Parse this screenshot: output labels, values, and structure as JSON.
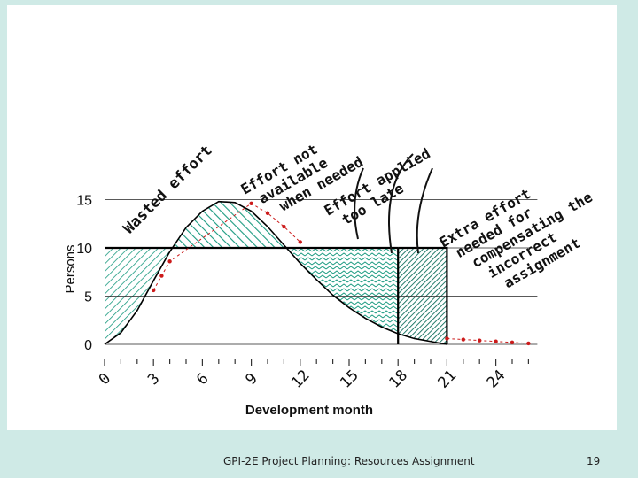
{
  "chart_data": {
    "type": "area",
    "xlabel": "Development month",
    "ylabel": "Persons",
    "x_ticks": [
      "0",
      "3",
      "6",
      "9",
      "12",
      "15",
      "18",
      "21",
      "24"
    ],
    "y_ticks": [
      "0",
      "5",
      "10",
      "15"
    ],
    "xlim": [
      0,
      26
    ],
    "ylim": [
      0,
      16
    ],
    "grid": "horizontal",
    "staffing_curve": {
      "x": [
        0,
        1,
        2,
        3,
        4,
        5,
        6,
        7,
        8,
        9,
        10,
        11,
        12,
        13,
        14,
        15,
        16,
        17,
        18,
        19,
        20,
        21
      ],
      "y": [
        0,
        1.2,
        3.5,
        6.6,
        9.6,
        12.1,
        13.8,
        14.8,
        14.7,
        13.8,
        12.2,
        10.3,
        8.4,
        6.7,
        5.1,
        3.8,
        2.7,
        1.8,
        1.1,
        0.6,
        0.3,
        0.0
      ]
    },
    "constant_staffing_level": 10,
    "constant_staffing_until": 18,
    "extra_staffing_until": 21,
    "dotted_line": {
      "x": [
        3,
        3.5,
        4,
        9,
        10,
        11,
        12
      ],
      "y": [
        5.6,
        7.1,
        8.6,
        14.6,
        13.6,
        12.2,
        10.6
      ]
    },
    "tail_line": {
      "x": [
        21,
        22,
        23,
        24,
        25,
        26
      ],
      "y": [
        0.6,
        0.5,
        0.4,
        0.3,
        0.2,
        0.1
      ]
    },
    "annotations": [
      "Wasted effort",
      "Effort not available when needed",
      "Effort applied too late",
      "Extra effort needed for compensating the incorrect assignment"
    ]
  },
  "footer": {
    "title": "GPI-2E Project Planning: Resources Assignment",
    "page": "19"
  },
  "colors": {
    "hatch": "#1a9a80",
    "line": "#000000",
    "marker": "#cc1a1a",
    "frame": "#cfeae6"
  }
}
